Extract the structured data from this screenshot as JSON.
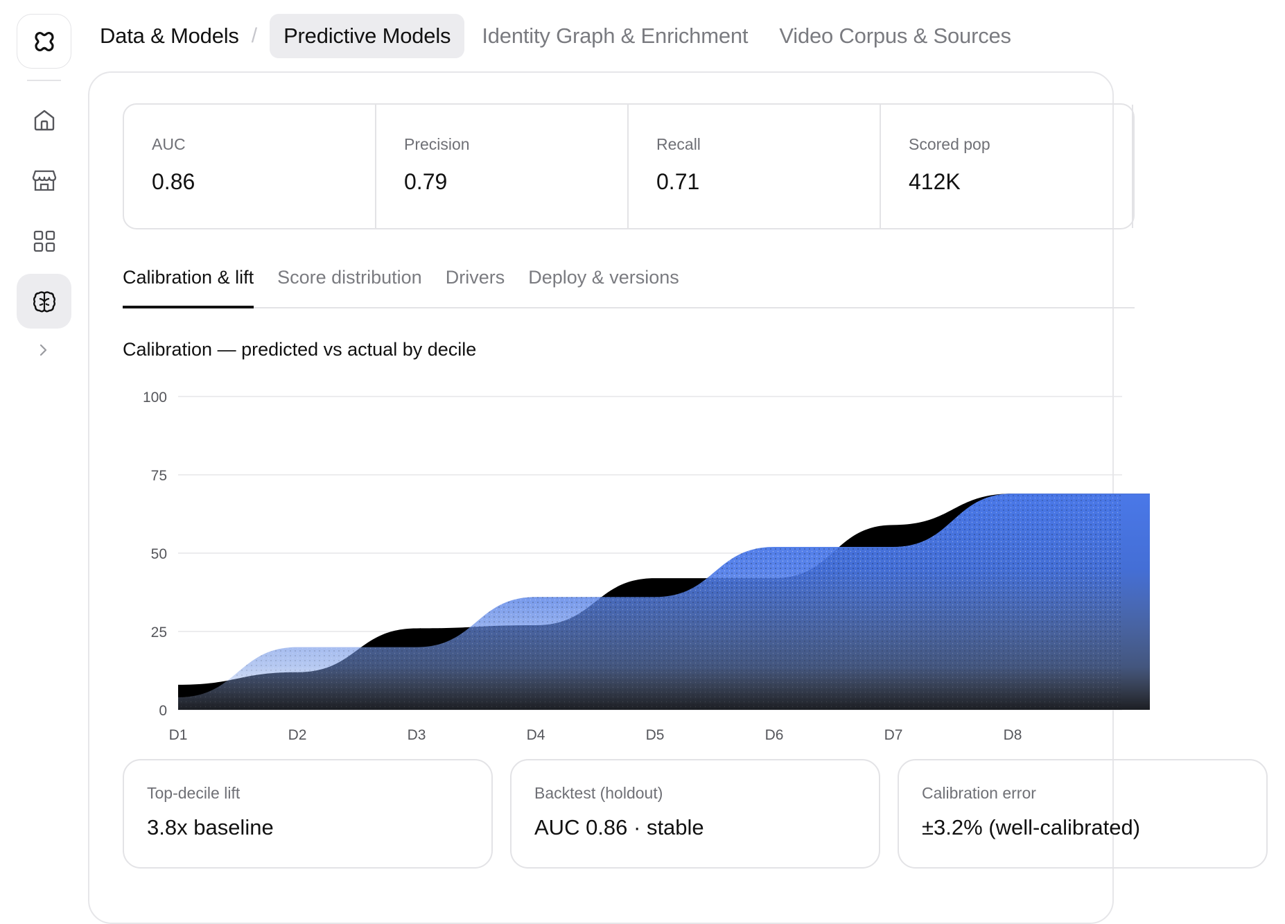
{
  "breadcrumb": {
    "root": "Data & Models",
    "separator": "/",
    "tabs": [
      {
        "label": "Predictive Models",
        "active": true
      },
      {
        "label": "Identity Graph & Enrichment",
        "active": false
      },
      {
        "label": "Video Corpus & Sources",
        "active": false
      }
    ]
  },
  "sidebar": {
    "items": [
      {
        "icon": "home-icon",
        "active": false
      },
      {
        "icon": "store-icon",
        "active": false
      },
      {
        "icon": "grid-icon",
        "active": false
      },
      {
        "icon": "brain-icon",
        "active": true
      }
    ],
    "expand_icon": "chevron-right-icon"
  },
  "kpis": [
    {
      "label": "AUC",
      "value": "0.86"
    },
    {
      "label": "Precision",
      "value": "0.79"
    },
    {
      "label": "Recall",
      "value": "0.71"
    },
    {
      "label": "Scored pop",
      "value": "412K"
    }
  ],
  "tabs": [
    {
      "label": "Calibration & lift",
      "active": true
    },
    {
      "label": "Score distribution",
      "active": false
    },
    {
      "label": "Drivers",
      "active": false
    },
    {
      "label": "Deploy & versions",
      "active": false
    }
  ],
  "chart_title": "Calibration — predicted vs actual by decile",
  "chart_data": {
    "type": "area",
    "title": "Calibration — predicted vs actual by decile",
    "categories": [
      "D1",
      "D2",
      "D3",
      "D4",
      "D5",
      "D6",
      "D7",
      "D8"
    ],
    "yticks": [
      0,
      25,
      50,
      75,
      100
    ],
    "ylim": [
      0,
      100
    ],
    "grid": true,
    "series": [
      {
        "values": [
          4,
          20,
          20,
          36,
          36,
          52,
          52,
          69
        ]
      },
      {
        "values": [
          8,
          12,
          26,
          27,
          42,
          42,
          59,
          69
        ]
      }
    ],
    "colors": {
      "actual": "#4a78e8",
      "predicted": "#000000",
      "grid": "#e6e6e9",
      "tick": "#55565b"
    }
  },
  "stats": [
    {
      "label": "Top-decile lift",
      "value": "3.8x baseline"
    },
    {
      "label": "Backtest (holdout)",
      "value": "AUC 0.86 · stable"
    },
    {
      "label": "Calibration error",
      "value": "±3.2% (well-calibrated)"
    }
  ]
}
